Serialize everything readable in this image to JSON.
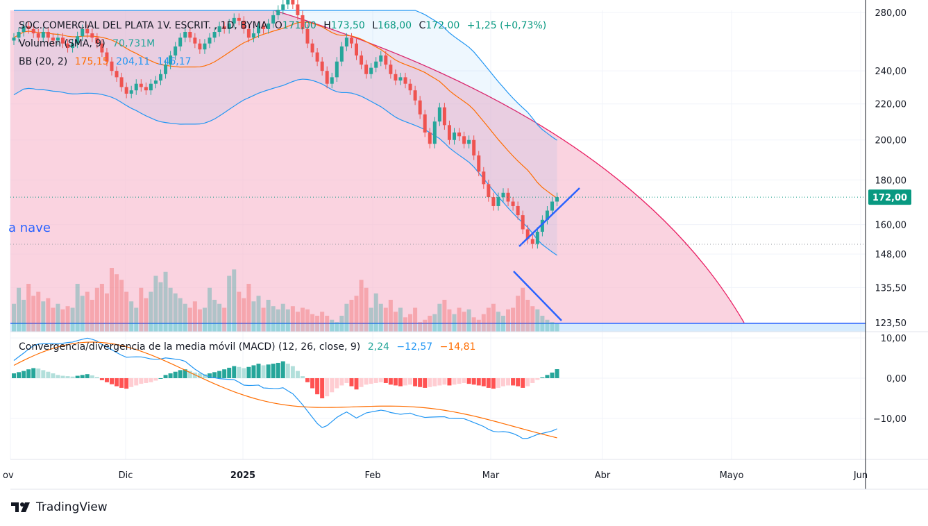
{
  "header": {
    "symbol": "SOC.COMERCIAL DEL PLATA 1V. ESCRIT. , 1D, BYMA",
    "o_label": "O",
    "o_value": "171,00",
    "h_label": "H",
    "h_value": "173,50",
    "l_label": "L",
    "l_value": "168,00",
    "c_label": "C",
    "c_value": "172,00",
    "change": "+1,25 (+0,73%)"
  },
  "volume_legend": {
    "label": "Volumen (SMA, 9)",
    "value": "70,731M"
  },
  "bb_legend": {
    "label": "BB (20, 2)",
    "basis": "175,15",
    "upper": "204,11",
    "lower": "146,17"
  },
  "macd_legend": {
    "label": "Convergencia/divergencia de la media móvil (MACD) (12, 26, close, 9)",
    "hist": "2,24",
    "macd": "−12,57",
    "signal": "−14,81"
  },
  "annotation": "a nave",
  "brand": "TradingView",
  "colors": {
    "up": "#26a69a",
    "down": "#ef5350",
    "bb_basis": "#ff6d00",
    "bb_band": "#2196f3",
    "arc": "#e91e63",
    "macd": "#2196f3",
    "signal": "#ff6d00",
    "trend": "#2962ff",
    "price_tag": "#089981"
  },
  "chart_data": {
    "type": "candlestick",
    "price_axis": {
      "scale": "log",
      "ticks": [
        "280,00",
        "240,00",
        "220,00",
        "200,00",
        "180,00",
        "160,00",
        "148,00",
        "135,50",
        "123,50"
      ],
      "tick_values": [
        280,
        240,
        220,
        200,
        180,
        160,
        148,
        135.5,
        123.5
      ],
      "current_price": "172,00",
      "current_value": 172
    },
    "macd_axis": {
      "ticks": [
        "10,00",
        "0,00",
        "−10,00"
      ],
      "tick_values": [
        10,
        0,
        -10
      ]
    },
    "time_axis": [
      "ov",
      "Dic",
      "2025",
      "Feb",
      "Mar",
      "Abr",
      "Mayo",
      "Jun"
    ],
    "candles_close": [
      262,
      266,
      270,
      268,
      265,
      262,
      266,
      262,
      260,
      262,
      258,
      255,
      258,
      263,
      268,
      265,
      262,
      258,
      252,
      246,
      240,
      236,
      230,
      226,
      228,
      232,
      230,
      228,
      232,
      234,
      238,
      244,
      250,
      256,
      262,
      266,
      262,
      258,
      254,
      258,
      262,
      266,
      270,
      268,
      272,
      276,
      274,
      268,
      262,
      265,
      270,
      268,
      272,
      278,
      282,
      286,
      290,
      286,
      278,
      268,
      258,
      252,
      246,
      240,
      232,
      236,
      246,
      256,
      262,
      258,
      250,
      244,
      238,
      242,
      246,
      250,
      244,
      238,
      234,
      236,
      232,
      228,
      222,
      214,
      204,
      198,
      210,
      218,
      208,
      200,
      204,
      202,
      198,
      200,
      192,
      184,
      178,
      172,
      168,
      172,
      174,
      170,
      168,
      164,
      158,
      154,
      152,
      157,
      162,
      166,
      170,
      172
    ],
    "volume_pct": [
      0.35,
      0.55,
      0.4,
      0.6,
      0.45,
      0.5,
      0.38,
      0.42,
      0.3,
      0.35,
      0.28,
      0.32,
      0.3,
      0.6,
      0.45,
      0.5,
      0.4,
      0.55,
      0.6,
      0.48,
      0.8,
      0.72,
      0.65,
      0.5,
      0.38,
      0.3,
      0.55,
      0.42,
      0.5,
      0.7,
      0.62,
      0.75,
      0.55,
      0.48,
      0.42,
      0.35,
      0.3,
      0.38,
      0.28,
      0.3,
      0.55,
      0.4,
      0.35,
      0.3,
      0.7,
      0.78,
      0.5,
      0.42,
      0.6,
      0.38,
      0.45,
      0.3,
      0.4,
      0.32,
      0.28,
      0.35,
      0.28,
      0.32,
      0.25,
      0.3,
      0.28,
      0.22,
      0.2,
      0.25,
      0.2,
      0.15,
      0.12,
      0.2,
      0.35,
      0.4,
      0.45,
      0.65,
      0.55,
      0.3,
      0.48,
      0.35,
      0.3,
      0.4,
      0.25,
      0.3,
      0.18,
      0.22,
      0.3,
      0.12,
      0.15,
      0.2,
      0.22,
      0.35,
      0.4,
      0.28,
      0.22,
      0.3,
      0.25,
      0.28,
      0.18,
      0.15,
      0.22,
      0.3,
      0.35,
      0.25,
      0.2,
      0.28,
      0.3,
      0.45,
      0.55,
      0.4,
      0.32,
      0.28,
      0.2,
      0.15,
      0.12,
      0.1
    ],
    "macd_hist": [
      1.2,
      1.5,
      1.8,
      2.2,
      2.5,
      2.4,
      2.0,
      1.6,
      1.2,
      0.8,
      0.6,
      0.5,
      0.4,
      0.6,
      0.8,
      1.0,
      0.7,
      0.3,
      -0.5,
      -1.0,
      -1.5,
      -2.0,
      -2.4,
      -2.6,
      -2.2,
      -1.8,
      -1.4,
      -1.2,
      -1.0,
      -0.6,
      0.0,
      0.8,
      1.2,
      1.6,
      2.0,
      2.2,
      1.8,
      1.4,
      1.2,
      1.0,
      1.2,
      1.5,
      1.8,
      2.2,
      2.6,
      3.0,
      2.8,
      2.5,
      2.8,
      3.2,
      3.6,
      3.2,
      3.4,
      3.6,
      3.8,
      4.2,
      3.6,
      3.0,
      1.8,
      0.5,
      -1.0,
      -2.5,
      -4.0,
      -5.0,
      -4.5,
      -3.5,
      -2.5,
      -1.8,
      -1.2,
      -2.0,
      -2.8,
      -2.2,
      -1.6,
      -1.4,
      -1.2,
      -1.0,
      -1.2,
      -1.6,
      -1.8,
      -2.0,
      -1.8,
      -1.6,
      -2.0,
      -2.2,
      -2.4,
      -2.2,
      -2.0,
      -1.8,
      -1.6,
      -1.8,
      -1.6,
      -1.4,
      -1.2,
      -1.4,
      -1.6,
      -1.8,
      -2.0,
      -2.4,
      -2.6,
      -2.4,
      -2.0,
      -1.8,
      -1.8,
      -2.0,
      -2.4,
      -2.0,
      -1.2,
      -0.4,
      0.2,
      0.8,
      1.4,
      2.24
    ],
    "macd_line_end": -12.57,
    "signal_line_end": -14.81,
    "bb_end": {
      "basis": 175.15,
      "upper": 204.11,
      "lower": 146.17
    }
  }
}
